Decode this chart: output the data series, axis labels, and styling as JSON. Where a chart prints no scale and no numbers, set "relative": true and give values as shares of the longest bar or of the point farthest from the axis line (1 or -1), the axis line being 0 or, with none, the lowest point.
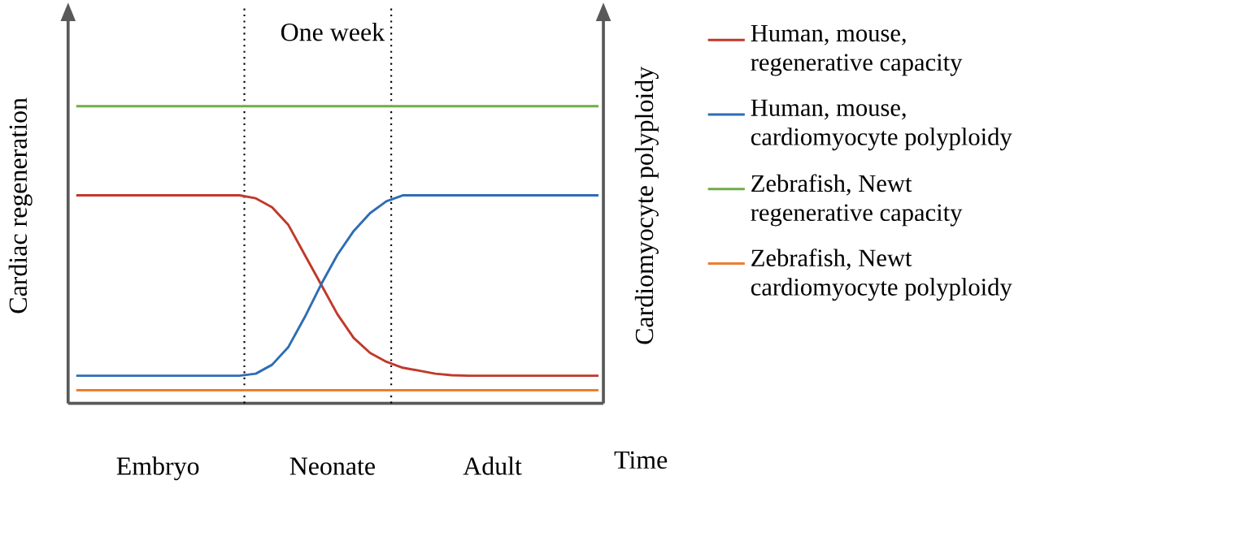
{
  "chart_data": {
    "type": "line",
    "relative": true,
    "xlabel": "Time",
    "ylabel": "Cardiac regeneration",
    "y2label": "Cardiomyocyte polyploidy",
    "annotations": [
      "One week",
      "Embryo",
      "Neonate",
      "Adult"
    ],
    "categories": [
      null,
      null,
      null,
      null,
      null,
      null,
      null,
      null,
      null,
      null,
      null,
      null,
      null,
      null,
      null,
      null,
      null,
      null,
      null,
      null,
      null,
      null,
      null,
      null,
      null,
      null,
      null,
      null,
      null,
      null,
      null,
      null,
      null
    ],
    "legend": "right",
    "marker": "none",
    "series": [
      {
        "name": "Human, mouse, regenerative capacity",
        "color": "#c0392b",
        "values": [
          0.7,
          0.7,
          0.7,
          0.7,
          0.7,
          0.7,
          0.7,
          0.7,
          0.7,
          0.7,
          0.7,
          0.69,
          0.66,
          0.6,
          0.5,
          0.4,
          0.3,
          0.22,
          0.17,
          0.14,
          0.12,
          0.11,
          0.1,
          0.095,
          0.093,
          0.093,
          0.093,
          0.093,
          0.093,
          0.093,
          0.093,
          0.093,
          0.093
        ]
      },
      {
        "name": "Human, mouse, cardiomyocyte polyploidy",
        "color": "#2e6db4",
        "values": [
          0.093,
          0.093,
          0.093,
          0.093,
          0.093,
          0.093,
          0.093,
          0.093,
          0.093,
          0.093,
          0.093,
          0.1,
          0.13,
          0.19,
          0.29,
          0.4,
          0.5,
          0.58,
          0.64,
          0.68,
          0.7,
          0.7,
          0.7,
          0.7,
          0.7,
          0.7,
          0.7,
          0.7,
          0.7,
          0.7,
          0.7,
          0.7,
          0.7
        ]
      },
      {
        "name": "Zebrafish, Newt regenerative capacity",
        "color": "#70ad47",
        "values": [
          1,
          1,
          1,
          1,
          1,
          1,
          1,
          1,
          1,
          1,
          1,
          1,
          1,
          1,
          1,
          1,
          1,
          1,
          1,
          1,
          1,
          1,
          1,
          1,
          1,
          1,
          1,
          1,
          1,
          1,
          1,
          1,
          1
        ]
      },
      {
        "name": "Zebrafish, Newt cardiomyocyte polyploidy",
        "color": "#ed7d31",
        "values": [
          0.044,
          0.044,
          0.044,
          0.044,
          0.044,
          0.044,
          0.044,
          0.044,
          0.044,
          0.044,
          0.044,
          0.044,
          0.044,
          0.044,
          0.044,
          0.044,
          0.044,
          0.044,
          0.044,
          0.044,
          0.044,
          0.044,
          0.044,
          0.044,
          0.044,
          0.044,
          0.044,
          0.044,
          0.044,
          0.044,
          0.044,
          0.044,
          0.044
        ]
      }
    ]
  }
}
